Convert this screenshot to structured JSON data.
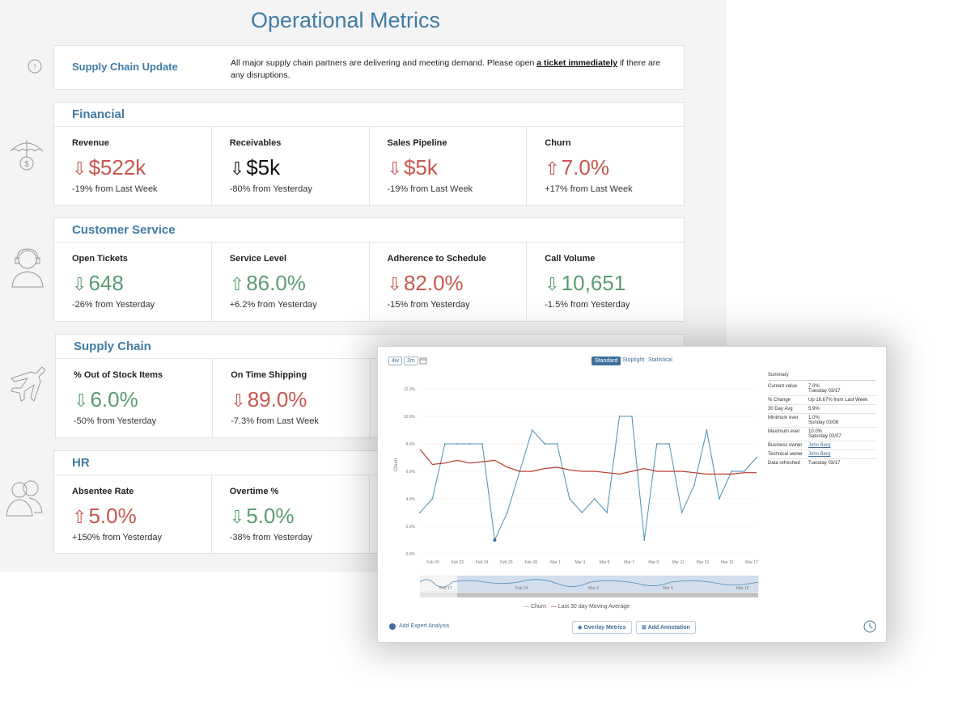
{
  "dashboard": {
    "title": "Operational Metrics",
    "update": {
      "title": "Supply Chain Update",
      "text_before": "All major supply chain partners are delivering and meeting demand. Please open ",
      "link": "a ticket immediately",
      "text_after": " if there are any disruptions."
    },
    "sections": [
      {
        "title": "Financial",
        "icon": "umbrella-dollar-icon",
        "metrics": [
          {
            "label": "Revenue",
            "value": "$522k",
            "arrow": "⇩",
            "color": "red",
            "change": "-19% from Last Week"
          },
          {
            "label": "Receivables",
            "value": "$5k",
            "arrow": "⇩",
            "color": "black",
            "change": "-80% from Yesterday"
          },
          {
            "label": "Sales Pipeline",
            "value": "$5k",
            "arrow": "⇩",
            "color": "red",
            "change": "-19% from Last Week"
          },
          {
            "label": "Churn",
            "value": "7.0%",
            "arrow": "⇧",
            "color": "red",
            "change": "+17% from Last Week"
          }
        ]
      },
      {
        "title": "Customer Service",
        "icon": "headset-agent-icon",
        "metrics": [
          {
            "label": "Open Tickets",
            "value": "648",
            "arrow": "⇩",
            "color": "green",
            "change": "-26% from Yesterday"
          },
          {
            "label": "Service Level",
            "value": "86.0%",
            "arrow": "⇧",
            "color": "green",
            "change": "+6.2% from Yesterday"
          },
          {
            "label": "Adherence to Schedule",
            "value": "82.0%",
            "arrow": "⇩",
            "color": "red",
            "change": "-15% from Yesterday"
          },
          {
            "label": "Call Volume",
            "value": "10,651",
            "arrow": "⇩",
            "color": "green",
            "change": "-1.5% from Yesterday"
          }
        ]
      },
      {
        "title": "Supply Chain",
        "icon": "airplane-icon",
        "metrics": [
          {
            "label": "% Out of Stock Items",
            "value": "6.0%",
            "arrow": "⇩",
            "color": "green",
            "change": "-50% from Yesterday"
          },
          {
            "label": "On Time Shipping",
            "value": "89.0%",
            "arrow": "⇩",
            "color": "red",
            "change": "-7.3% from Last Week"
          }
        ]
      },
      {
        "title": "HR",
        "icon": "people-icon",
        "metrics": [
          {
            "label": "Absentee Rate",
            "value": "5.0%",
            "arrow": "⇧",
            "color": "red",
            "change": "+150% from Yesterday"
          },
          {
            "label": "Overtime %",
            "value": "5.0%",
            "arrow": "⇩",
            "color": "green",
            "change": "-38% from Yesterday"
          }
        ]
      }
    ]
  },
  "chart_panel": {
    "ranges": [
      "4w",
      "2m"
    ],
    "modes": [
      "Standard",
      "Stoplight",
      "Statistical"
    ],
    "active_mode": "Standard",
    "summary": {
      "title": "Summary",
      "rows": [
        {
          "k": "Current value",
          "v": "7.0%",
          "v2": "Tuesday 03/17"
        },
        {
          "k": "% Change",
          "v": "Up 16.67% from Last Week"
        },
        {
          "k": "30 Day Avg",
          "v": "5.9%"
        },
        {
          "k": "Minimum ever",
          "v": "1.0%",
          "v2": "Sunday 03/08"
        },
        {
          "k": "Maximum ever",
          "v": "10.0%",
          "v2": "Saturday 03/07"
        },
        {
          "k": "Business owner",
          "v": "John Berg",
          "link": true
        },
        {
          "k": "Technical owner",
          "v": "John Berg",
          "link": true
        },
        {
          "k": "Data refreshed",
          "v": "Tuesday 03/17"
        }
      ]
    },
    "add_expert": "Add Expert Analysis",
    "overlay_btn": "Overlay Metrics",
    "annotation_btn": "Add Annotation",
    "navigator_labels": [
      "Feb 17",
      "Feb 24",
      "Mar 3",
      "Mar 9",
      "Mar 16"
    ]
  },
  "chart_data": {
    "type": "line",
    "ylabel": "Churn",
    "ylim": [
      0,
      12
    ],
    "yticks": [
      "0.0%",
      "2.0%",
      "4.0%",
      "6.0%",
      "8.0%",
      "10.0%",
      "12.0%"
    ],
    "xticks": [
      "Feb 20",
      "Feb 22",
      "Feb 24",
      "Feb 26",
      "Feb 28",
      "Mar 1",
      "Mar 3",
      "Mar 5",
      "Mar 7",
      "Mar 9",
      "Mar 11",
      "Mar 13",
      "Mar 15",
      "Mar 17"
    ],
    "series": [
      {
        "name": "Churn",
        "color": "#4f8db8",
        "values": [
          3,
          4,
          8,
          8,
          8,
          8,
          1,
          3,
          6,
          9,
          8,
          8,
          4,
          3,
          4,
          3,
          10,
          10,
          1,
          8,
          8,
          3,
          5,
          9,
          4,
          6,
          6,
          7
        ]
      },
      {
        "name": "Last 30 day Moving Average",
        "color": "#b83a2f",
        "values": [
          7.6,
          6.5,
          6.6,
          6.8,
          6.6,
          6.7,
          6.8,
          6.3,
          6.0,
          6.0,
          6.2,
          6.3,
          6.1,
          6.0,
          6.0,
          5.9,
          5.8,
          6.0,
          6.2,
          6.0,
          6.0,
          6.0,
          5.9,
          5.8,
          5.8,
          5.8,
          5.9,
          5.9
        ]
      }
    ],
    "legend": "bottom"
  }
}
